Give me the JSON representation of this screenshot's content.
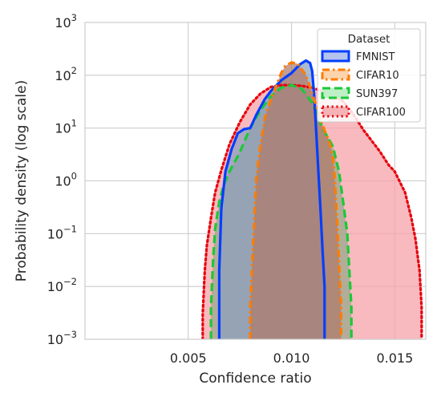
{
  "chart_data": {
    "type": "area",
    "title": "",
    "xlabel": "Confidence ratio",
    "ylabel": "Probability density (log scale)",
    "yscale": "log",
    "xlim": [
      0.0,
      0.0165
    ],
    "ylim": [
      0.001,
      1000
    ],
    "x_ticks": [
      {
        "value": 0.005,
        "label": "0.005"
      },
      {
        "value": 0.01,
        "label": "0.010"
      },
      {
        "value": 0.015,
        "label": "0.015"
      }
    ],
    "y_ticks": [
      {
        "value": 0.001,
        "base": "10",
        "exp": "−3"
      },
      {
        "value": 0.01,
        "base": "10",
        "exp": "−2"
      },
      {
        "value": 0.1,
        "base": "10",
        "exp": "−1"
      },
      {
        "value": 1,
        "base": "10",
        "exp": "0"
      },
      {
        "value": 10,
        "base": "10",
        "exp": "1"
      },
      {
        "value": 100,
        "base": "10",
        "exp": "2"
      },
      {
        "value": 1000,
        "base": "10",
        "exp": "3"
      }
    ],
    "grid": true,
    "legend": {
      "title": "Dataset",
      "position": "top-right"
    },
    "series": [
      {
        "name": "CIFAR100",
        "color": "#e8000b",
        "fill": "#f6a0a6",
        "dash": "dotted",
        "points": [
          [
            0.0057,
            0.001
          ],
          [
            0.0057,
            0.003
          ],
          [
            0.0058,
            0.02
          ],
          [
            0.0059,
            0.06
          ],
          [
            0.0061,
            0.2
          ],
          [
            0.0063,
            0.6
          ],
          [
            0.0066,
            1.6
          ],
          [
            0.007,
            5
          ],
          [
            0.0075,
            13
          ],
          [
            0.008,
            28
          ],
          [
            0.0085,
            45
          ],
          [
            0.009,
            60
          ],
          [
            0.0095,
            65
          ],
          [
            0.01,
            65
          ],
          [
            0.0105,
            63
          ],
          [
            0.011,
            58
          ],
          [
            0.0115,
            50
          ],
          [
            0.012,
            42
          ],
          [
            0.0125,
            32
          ],
          [
            0.013,
            18
          ],
          [
            0.0135,
            9
          ],
          [
            0.014,
            5
          ],
          [
            0.0143,
            3.5
          ],
          [
            0.0147,
            2
          ],
          [
            0.015,
            1.5
          ],
          [
            0.0155,
            0.6
          ],
          [
            0.0158,
            0.2
          ],
          [
            0.016,
            0.08
          ],
          [
            0.0162,
            0.02
          ],
          [
            0.0163,
            0.004
          ],
          [
            0.0163,
            0.001
          ]
        ]
      },
      {
        "name": "SUN397",
        "color": "#1ac938",
        "fill": "#94a88a",
        "dash": "dashed",
        "points": [
          [
            0.0061,
            0.001
          ],
          [
            0.0061,
            0.004
          ],
          [
            0.0062,
            0.03
          ],
          [
            0.0063,
            0.12
          ],
          [
            0.0065,
            0.4
          ],
          [
            0.0067,
            0.8
          ],
          [
            0.007,
            1.5
          ],
          [
            0.0075,
            3.5
          ],
          [
            0.008,
            10
          ],
          [
            0.0085,
            22
          ],
          [
            0.009,
            40
          ],
          [
            0.0095,
            58
          ],
          [
            0.01,
            65
          ],
          [
            0.0105,
            55
          ],
          [
            0.011,
            30
          ],
          [
            0.0115,
            10
          ],
          [
            0.012,
            4.5
          ],
          [
            0.0123,
            1.5
          ],
          [
            0.0125,
            0.4
          ],
          [
            0.0127,
            0.1
          ],
          [
            0.0128,
            0.02
          ],
          [
            0.0129,
            0.004
          ],
          [
            0.0129,
            0.001
          ]
        ]
      },
      {
        "name": "FMNIST",
        "color": "#023eff",
        "fill": "#8a9fbf",
        "dash": "solid",
        "points": [
          [
            0.0065,
            0.001
          ],
          [
            0.0065,
            0.02
          ],
          [
            0.0066,
            0.3
          ],
          [
            0.0068,
            1.5
          ],
          [
            0.0071,
            4
          ],
          [
            0.0074,
            8
          ],
          [
            0.0077,
            9.5
          ],
          [
            0.008,
            10
          ],
          [
            0.0083,
            18
          ],
          [
            0.0087,
            35
          ],
          [
            0.009,
            50
          ],
          [
            0.0095,
            80
          ],
          [
            0.01,
            110
          ],
          [
            0.0104,
            160
          ],
          [
            0.0107,
            190
          ],
          [
            0.0109,
            170
          ],
          [
            0.011,
            120
          ],
          [
            0.0111,
            40
          ],
          [
            0.0112,
            8
          ],
          [
            0.0113,
            1.5
          ],
          [
            0.0114,
            0.3
          ],
          [
            0.0115,
            0.05
          ],
          [
            0.0116,
            0.01
          ],
          [
            0.0116,
            0.001
          ]
        ]
      },
      {
        "name": "CIFAR10",
        "color": "#ff7c00",
        "fill": "#b07a6a",
        "dash": "dashdot",
        "points": [
          [
            0.008,
            0.001
          ],
          [
            0.008,
            0.004
          ],
          [
            0.0081,
            0.03
          ],
          [
            0.0082,
            0.2
          ],
          [
            0.0083,
            1.2
          ],
          [
            0.0085,
            5
          ],
          [
            0.0087,
            15
          ],
          [
            0.009,
            35
          ],
          [
            0.0093,
            70
          ],
          [
            0.0095,
            110
          ],
          [
            0.0097,
            150
          ],
          [
            0.01,
            175
          ],
          [
            0.0103,
            165
          ],
          [
            0.0107,
            100
          ],
          [
            0.011,
            45
          ],
          [
            0.0113,
            20
          ],
          [
            0.0116,
            9
          ],
          [
            0.0118,
            6
          ],
          [
            0.012,
            3
          ],
          [
            0.0121,
            1
          ],
          [
            0.0122,
            0.2
          ],
          [
            0.0123,
            0.03
          ],
          [
            0.0124,
            0.004
          ],
          [
            0.0124,
            0.001
          ]
        ]
      }
    ],
    "legend_entries": [
      {
        "name": "FMNIST",
        "color": "#023eff",
        "fill": "#b4c3ee",
        "dash": "solid"
      },
      {
        "name": "CIFAR10",
        "color": "#ff7c00",
        "fill": "#fbd3ad",
        "dash": "dashdot"
      },
      {
        "name": "SUN397",
        "color": "#1ac938",
        "fill": "#bfefc7",
        "dash": "dashed"
      },
      {
        "name": "CIFAR100",
        "color": "#e8000b",
        "fill": "#f6b3b6",
        "dash": "dotted"
      }
    ]
  }
}
